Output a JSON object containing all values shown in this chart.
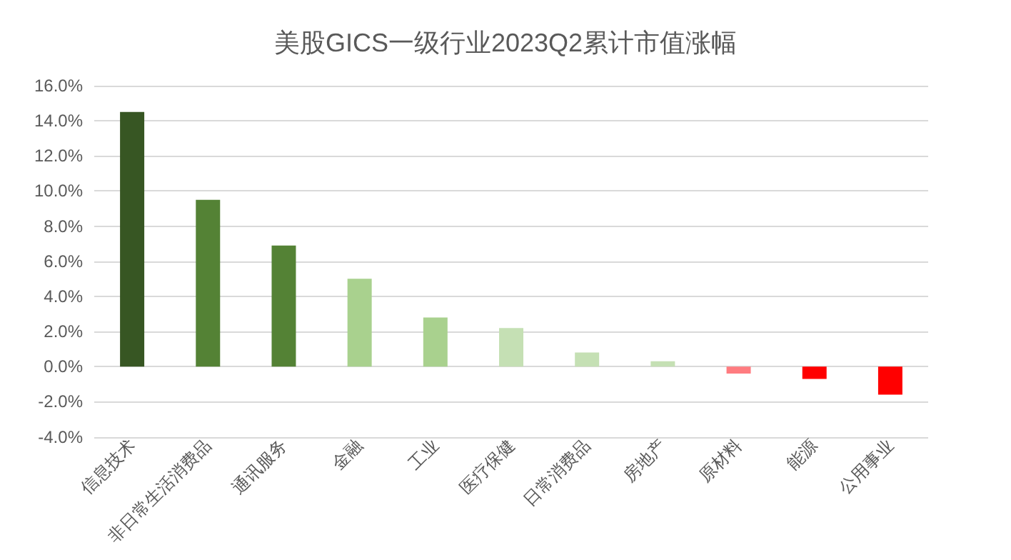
{
  "chart_data": {
    "type": "bar",
    "title": "美股GICS一级行业2023Q2累计市值涨幅",
    "categories": [
      "信息技术",
      "非日常生活消费品",
      "通讯服务",
      "金融",
      "工业",
      "医疗保健",
      "日常消费品",
      "房地产",
      "原材料",
      "能源",
      "公用事业"
    ],
    "values": [
      14.5,
      9.5,
      6.9,
      5.0,
      2.8,
      2.2,
      0.8,
      0.3,
      -0.4,
      -0.7,
      -1.6
    ],
    "colors": [
      "#375623",
      "#548235",
      "#548235",
      "#a9d18e",
      "#a9d18e",
      "#c5e0b4",
      "#c5e0b4",
      "#c5e0b4",
      "#ff7c80",
      "#ff0000",
      "#ff0000"
    ],
    "ylim": [
      -4,
      16
    ],
    "yticks": [
      {
        "value": -4,
        "label": "-4.0%"
      },
      {
        "value": -2,
        "label": "-2.0%"
      },
      {
        "value": 0,
        "label": "0.0%"
      },
      {
        "value": 2,
        "label": "2.0%"
      },
      {
        "value": 4,
        "label": "4.0%"
      },
      {
        "value": 6,
        "label": "6.0%"
      },
      {
        "value": 8,
        "label": "8.0%"
      },
      {
        "value": 10,
        "label": "10.0%"
      },
      {
        "value": 12,
        "label": "12.0%"
      },
      {
        "value": 14,
        "label": "14.0%"
      },
      {
        "value": 16,
        "label": "16.0%"
      }
    ],
    "grid": "y"
  }
}
